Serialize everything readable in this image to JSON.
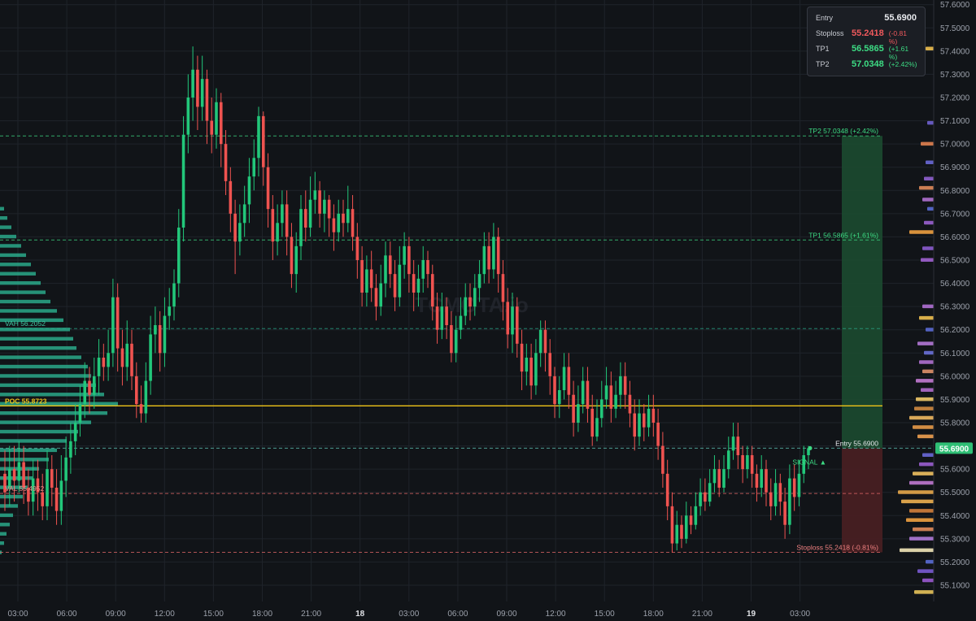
{
  "info_panel": {
    "entry": {
      "label": "Entry",
      "value": "55.6900"
    },
    "stoploss": {
      "label": "Stoploss",
      "value": "55.2418",
      "pct": "(-0.81 %)"
    },
    "tp1": {
      "label": "TP1",
      "value": "56.5865",
      "pct": "(+1.61 %)"
    },
    "tp2": {
      "label": "TP2",
      "value": "57.0348",
      "pct": "(+2.42%)"
    }
  },
  "colors": {
    "background": "#111418",
    "up": "#22c77a",
    "down": "#ef5350",
    "poc": "#f0c419",
    "profile": "#2aa889",
    "tp_zone": "#1c4a30",
    "sl_zone": "#4a1f22"
  },
  "watermark": "TCMOTA.io",
  "chart_data": {
    "type": "candlestick",
    "yaxis": {
      "range": [
        55.03,
        57.62
      ],
      "ticks": [
        "55.1000",
        "55.2000",
        "55.3000",
        "55.4000",
        "55.5000",
        "55.6000",
        "55.7000",
        "55.8000",
        "55.9000",
        "56.0000",
        "56.1000",
        "56.2000",
        "56.3000",
        "56.4000",
        "56.5000",
        "56.6000",
        "56.7000",
        "56.8000",
        "56.9000",
        "57.0000",
        "57.1000",
        "57.2000",
        "57.3000",
        "57.4000",
        "57.5000",
        "57.6000"
      ],
      "current_price_label": "55.6900"
    },
    "xaxis": {
      "ticks": [
        "03:00",
        "06:00",
        "09:00",
        "12:00",
        "15:00",
        "18:00",
        "21:00",
        "18",
        "03:00",
        "06:00",
        "09:00",
        "12:00",
        "15:00",
        "18:00",
        "21:00",
        "19",
        "03:00"
      ]
    },
    "levels": [
      {
        "name": "TP2",
        "label": "TP2 57.0348 (+2.42%)",
        "price": 57.0348,
        "color": "#3ddc84",
        "style": "dashed"
      },
      {
        "name": "TP1",
        "label": "TP1 56.5865 (+1.61%)",
        "price": 56.5865,
        "color": "#3ddc84",
        "style": "dashed"
      },
      {
        "name": "VAH",
        "label": "VAH 56.2052",
        "price": 56.2052,
        "color": "#2aa889",
        "style": "dashed"
      },
      {
        "name": "POC",
        "label": "POC 55.8723",
        "price": 55.8723,
        "color": "#f0c419",
        "style": "solid"
      },
      {
        "name": "Entry",
        "label": "Entry 55.6900",
        "price": 55.69,
        "color": "#5fc8b8",
        "style": "dashed"
      },
      {
        "name": "VAL",
        "label": "VAL 55.4952",
        "price": 55.4952,
        "color": "#e86a6a",
        "style": "dashed"
      },
      {
        "name": "Stoploss",
        "label": "Stoploss 55.2418 (-0.81%)",
        "price": 55.2418,
        "color": "#e86a6a",
        "style": "dashed"
      }
    ],
    "signal_label": "SIGNAL ▲",
    "candles": [
      [
        55.58,
        55.5,
        55.68,
        55.42
      ],
      [
        55.52,
        55.6,
        55.7,
        55.44
      ],
      [
        55.6,
        55.55,
        55.7,
        55.46
      ],
      [
        55.55,
        55.63,
        55.72,
        55.5
      ],
      [
        55.63,
        55.52,
        55.7,
        55.45
      ],
      [
        55.52,
        55.46,
        55.6,
        55.4
      ],
      [
        55.46,
        55.56,
        55.64,
        55.4
      ],
      [
        55.56,
        55.5,
        55.64,
        55.42
      ],
      [
        55.5,
        55.44,
        55.58,
        55.38
      ],
      [
        55.44,
        55.6,
        55.68,
        55.38
      ],
      [
        55.6,
        55.52,
        55.66,
        55.44
      ],
      [
        55.52,
        55.42,
        55.6,
        55.36
      ],
      [
        55.42,
        55.55,
        55.66,
        55.36
      ],
      [
        55.55,
        55.65,
        55.74,
        55.48
      ],
      [
        55.65,
        55.72,
        55.8,
        55.58
      ],
      [
        55.72,
        55.8,
        55.88,
        55.66
      ],
      [
        55.8,
        55.88,
        55.96,
        55.74
      ],
      [
        55.88,
        55.98,
        56.06,
        55.82
      ],
      [
        55.98,
        55.92,
        56.04,
        55.84
      ],
      [
        55.92,
        56.0,
        56.08,
        55.86
      ],
      [
        56.0,
        56.08,
        56.16,
        55.92
      ],
      [
        56.08,
        56.04,
        56.14,
        55.98
      ],
      [
        56.04,
        56.1,
        56.2,
        55.98
      ],
      [
        56.1,
        56.34,
        56.42,
        56.04
      ],
      [
        56.34,
        56.12,
        56.4,
        56.02
      ],
      [
        56.12,
        56.04,
        56.2,
        55.96
      ],
      [
        56.04,
        56.14,
        56.24,
        55.98
      ],
      [
        56.14,
        56.0,
        56.2,
        55.94
      ],
      [
        56.0,
        55.88,
        56.06,
        55.82
      ],
      [
        55.88,
        55.84,
        55.96,
        55.8
      ],
      [
        55.84,
        55.98,
        56.06,
        55.8
      ],
      [
        55.98,
        56.18,
        56.26,
        55.92
      ],
      [
        56.18,
        56.22,
        56.3,
        56.1
      ],
      [
        56.22,
        56.1,
        56.28,
        56.02
      ],
      [
        56.1,
        56.26,
        56.34,
        56.04
      ],
      [
        56.26,
        56.3,
        56.38,
        56.2
      ],
      [
        56.3,
        56.4,
        56.46,
        56.24
      ],
      [
        56.4,
        56.64,
        56.72,
        56.34
      ],
      [
        56.64,
        57.04,
        57.12,
        56.58
      ],
      [
        57.04,
        57.2,
        57.3,
        56.96
      ],
      [
        57.2,
        57.32,
        57.42,
        57.1
      ],
      [
        57.32,
        57.16,
        57.38,
        57.06
      ],
      [
        57.16,
        57.28,
        57.38,
        57.1
      ],
      [
        57.28,
        57.1,
        57.32,
        57.0
      ],
      [
        57.1,
        57.04,
        57.2,
        56.96
      ],
      [
        57.04,
        57.18,
        57.24,
        56.98
      ],
      [
        57.18,
        57.0,
        57.22,
        56.9
      ],
      [
        57.0,
        56.84,
        57.06,
        56.78
      ],
      [
        56.84,
        56.7,
        56.9,
        56.62
      ],
      [
        56.7,
        56.58,
        56.76,
        56.44
      ],
      [
        56.58,
        56.66,
        56.74,
        56.52
      ],
      [
        56.66,
        56.74,
        56.82,
        56.6
      ],
      [
        56.74,
        56.86,
        56.94,
        56.66
      ],
      [
        56.86,
        56.94,
        57.02,
        56.8
      ],
      [
        56.94,
        57.12,
        57.16,
        56.86
      ],
      [
        57.12,
        56.9,
        57.14,
        56.82
      ],
      [
        56.9,
        56.72,
        56.96,
        56.64
      ],
      [
        56.72,
        56.58,
        56.78,
        56.5
      ],
      [
        56.58,
        56.66,
        56.74,
        56.52
      ],
      [
        56.66,
        56.74,
        56.8,
        56.6
      ],
      [
        56.74,
        56.6,
        56.8,
        56.52
      ],
      [
        56.6,
        56.44,
        56.66,
        56.38
      ],
      [
        56.44,
        56.56,
        56.62,
        56.36
      ],
      [
        56.56,
        56.72,
        56.78,
        56.5
      ],
      [
        56.72,
        56.64,
        56.8,
        56.58
      ],
      [
        56.64,
        56.76,
        56.86,
        56.6
      ],
      [
        56.76,
        56.8,
        56.88,
        56.7
      ],
      [
        56.8,
        56.7,
        56.84,
        56.64
      ],
      [
        56.7,
        56.76,
        56.8,
        56.62
      ],
      [
        56.76,
        56.68,
        56.78,
        56.6
      ],
      [
        56.68,
        56.62,
        56.74,
        56.54
      ],
      [
        56.62,
        56.7,
        56.76,
        56.58
      ],
      [
        56.7,
        56.66,
        56.76,
        56.6
      ],
      [
        56.66,
        56.72,
        56.82,
        56.62
      ],
      [
        56.72,
        56.6,
        56.78,
        56.54
      ],
      [
        56.6,
        56.5,
        56.66,
        56.42
      ],
      [
        56.5,
        56.36,
        56.56,
        56.3
      ],
      [
        56.36,
        56.46,
        56.52,
        56.3
      ],
      [
        56.46,
        56.38,
        56.54,
        56.32
      ],
      [
        56.38,
        56.3,
        56.44,
        56.24
      ],
      [
        56.3,
        56.4,
        56.48,
        56.26
      ],
      [
        56.4,
        56.52,
        56.58,
        56.34
      ],
      [
        56.52,
        56.44,
        56.58,
        56.38
      ],
      [
        56.44,
        56.34,
        56.5,
        56.28
      ],
      [
        56.34,
        56.48,
        56.56,
        56.3
      ],
      [
        56.48,
        56.56,
        56.62,
        56.42
      ],
      [
        56.56,
        56.44,
        56.6,
        56.36
      ],
      [
        56.44,
        56.36,
        56.5,
        56.28
      ],
      [
        56.36,
        56.42,
        56.48,
        56.3
      ],
      [
        56.42,
        56.5,
        56.56,
        56.36
      ],
      [
        56.5,
        56.44,
        56.54,
        56.38
      ],
      [
        56.44,
        56.3,
        56.48,
        56.24
      ],
      [
        56.3,
        56.2,
        56.36,
        56.14
      ],
      [
        56.2,
        56.3,
        56.36,
        56.16
      ],
      [
        56.3,
        56.22,
        56.34,
        56.16
      ],
      [
        56.22,
        56.1,
        56.28,
        56.06
      ],
      [
        56.1,
        56.2,
        56.26,
        56.06
      ],
      [
        56.2,
        56.26,
        56.34,
        56.16
      ],
      [
        56.26,
        56.34,
        56.4,
        56.22
      ],
      [
        56.34,
        56.3,
        56.4,
        56.24
      ],
      [
        56.3,
        56.38,
        56.44,
        56.26
      ],
      [
        56.38,
        56.44,
        56.5,
        56.32
      ],
      [
        56.44,
        56.56,
        56.62,
        56.4
      ],
      [
        56.56,
        56.46,
        56.62,
        56.4
      ],
      [
        56.46,
        56.6,
        56.66,
        56.42
      ],
      [
        56.6,
        56.44,
        56.64,
        56.36
      ],
      [
        56.44,
        56.32,
        56.5,
        56.24
      ],
      [
        56.32,
        56.18,
        56.38,
        56.12
      ],
      [
        56.18,
        56.3,
        56.36,
        56.1
      ],
      [
        56.3,
        56.14,
        56.34,
        56.08
      ],
      [
        56.14,
        56.02,
        56.2,
        55.94
      ],
      [
        56.02,
        56.08,
        56.14,
        55.96
      ],
      [
        56.08,
        55.96,
        56.14,
        55.9
      ],
      [
        55.96,
        56.1,
        56.16,
        55.92
      ],
      [
        56.1,
        56.2,
        56.24,
        56.04
      ],
      [
        56.2,
        56.1,
        56.24,
        56.02
      ],
      [
        56.1,
        56.0,
        56.16,
        55.92
      ],
      [
        56.0,
        55.88,
        56.04,
        55.82
      ],
      [
        55.88,
        55.94,
        56.0,
        55.82
      ],
      [
        55.94,
        56.04,
        56.1,
        55.9
      ],
      [
        56.04,
        55.92,
        56.1,
        55.86
      ],
      [
        55.92,
        55.8,
        55.98,
        55.74
      ],
      [
        55.8,
        55.88,
        55.96,
        55.76
      ],
      [
        55.88,
        55.98,
        56.04,
        55.84
      ],
      [
        55.98,
        55.86,
        56.04,
        55.8
      ],
      [
        55.86,
        55.74,
        55.92,
        55.7
      ],
      [
        55.74,
        55.82,
        55.9,
        55.72
      ],
      [
        55.82,
        55.9,
        55.98,
        55.78
      ],
      [
        55.9,
        55.96,
        56.04,
        55.86
      ],
      [
        55.96,
        55.86,
        56.02,
        55.8
      ],
      [
        55.86,
        55.92,
        55.98,
        55.82
      ],
      [
        55.92,
        56.0,
        56.06,
        55.86
      ],
      [
        56.0,
        55.92,
        56.06,
        55.86
      ],
      [
        55.92,
        55.84,
        55.98,
        55.78
      ],
      [
        55.84,
        55.74,
        55.9,
        55.68
      ],
      [
        55.74,
        55.84,
        55.9,
        55.7
      ],
      [
        55.84,
        55.78,
        55.88,
        55.72
      ],
      [
        55.78,
        55.86,
        55.92,
        55.74
      ],
      [
        55.86,
        55.8,
        55.92,
        55.74
      ],
      [
        55.8,
        55.7,
        55.86,
        55.64
      ],
      [
        55.7,
        55.58,
        55.76,
        55.52
      ],
      [
        55.58,
        55.44,
        55.64,
        55.38
      ],
      [
        55.44,
        55.28,
        55.5,
        55.24
      ],
      [
        55.28,
        55.36,
        55.42,
        55.25
      ],
      [
        55.36,
        55.3,
        55.4,
        55.26
      ],
      [
        55.3,
        55.4,
        55.46,
        55.28
      ],
      [
        55.4,
        55.36,
        55.44,
        55.32
      ],
      [
        55.36,
        55.44,
        55.5,
        55.34
      ],
      [
        55.44,
        55.5,
        55.56,
        55.4
      ],
      [
        55.5,
        55.46,
        55.56,
        55.42
      ],
      [
        55.46,
        55.54,
        55.6,
        55.44
      ],
      [
        55.54,
        55.6,
        55.66,
        55.5
      ],
      [
        55.6,
        55.52,
        55.64,
        55.48
      ],
      [
        55.52,
        55.6,
        55.66,
        55.5
      ],
      [
        55.6,
        55.68,
        55.74,
        55.56
      ],
      [
        55.68,
        55.74,
        55.8,
        55.64
      ],
      [
        55.74,
        55.66,
        55.8,
        55.6
      ],
      [
        55.66,
        55.6,
        55.7,
        55.54
      ],
      [
        55.6,
        55.66,
        55.7,
        55.56
      ],
      [
        55.66,
        55.58,
        55.7,
        55.52
      ],
      [
        55.58,
        55.52,
        55.62,
        55.46
      ],
      [
        55.52,
        55.6,
        55.66,
        55.48
      ],
      [
        55.6,
        55.5,
        55.64,
        55.44
      ],
      [
        55.5,
        55.44,
        55.56,
        55.38
      ],
      [
        55.44,
        55.54,
        55.6,
        55.4
      ],
      [
        55.54,
        55.46,
        55.58,
        55.4
      ],
      [
        55.46,
        55.36,
        55.52,
        55.3
      ],
      [
        55.36,
        55.56,
        55.62,
        55.32
      ],
      [
        55.56,
        55.48,
        55.62,
        55.42
      ],
      [
        55.48,
        55.58,
        55.64,
        55.44
      ],
      [
        55.58,
        55.66,
        55.7,
        55.54
      ],
      [
        55.66,
        55.69,
        55.7,
        55.6
      ]
    ],
    "volume_profile_left": [
      [
        55.24,
        2
      ],
      [
        55.28,
        5
      ],
      [
        55.32,
        8
      ],
      [
        55.36,
        12
      ],
      [
        55.4,
        16
      ],
      [
        55.44,
        22
      ],
      [
        55.48,
        28
      ],
      [
        55.52,
        34
      ],
      [
        55.56,
        40
      ],
      [
        55.6,
        48
      ],
      [
        55.64,
        60
      ],
      [
        55.68,
        70
      ],
      [
        55.72,
        82
      ],
      [
        55.76,
        96
      ],
      [
        55.8,
        112
      ],
      [
        55.84,
        132
      ],
      [
        55.88,
        145
      ],
      [
        55.92,
        128
      ],
      [
        55.96,
        118
      ],
      [
        56.0,
        112
      ],
      [
        56.04,
        108
      ],
      [
        56.08,
        100
      ],
      [
        56.12,
        94
      ],
      [
        56.16,
        90
      ],
      [
        56.2,
        86
      ],
      [
        56.24,
        78
      ],
      [
        56.28,
        70
      ],
      [
        56.32,
        62
      ],
      [
        56.36,
        56
      ],
      [
        56.4,
        50
      ],
      [
        56.44,
        44
      ],
      [
        56.48,
        38
      ],
      [
        56.52,
        32
      ],
      [
        56.56,
        26
      ],
      [
        56.6,
        20
      ],
      [
        56.64,
        14
      ],
      [
        56.68,
        9
      ],
      [
        56.72,
        5
      ]
    ],
    "volume_profile_right": [
      [
        55.07,
        24,
        "#e8c35a"
      ],
      [
        55.12,
        14,
        "#9b59d0"
      ],
      [
        55.16,
        20,
        "#7b5bd4"
      ],
      [
        55.2,
        10,
        "#5a6bd6"
      ],
      [
        55.25,
        42,
        "#f2e6b8"
      ],
      [
        55.3,
        30,
        "#b07ad8"
      ],
      [
        55.34,
        26,
        "#e08a5a"
      ],
      [
        55.38,
        34,
        "#f0a040"
      ],
      [
        55.42,
        30,
        "#d4803c"
      ],
      [
        55.46,
        40,
        "#f0b050"
      ],
      [
        55.5,
        44,
        "#e8a84a"
      ],
      [
        55.54,
        30,
        "#c078d0"
      ],
      [
        55.58,
        26,
        "#f0c060"
      ],
      [
        55.62,
        18,
        "#9a5ed0"
      ],
      [
        55.66,
        14,
        "#6a68d8"
      ],
      [
        55.74,
        20,
        "#f0a050"
      ],
      [
        55.78,
        26,
        "#e89a48"
      ],
      [
        55.82,
        30,
        "#f0b860"
      ],
      [
        55.86,
        24,
        "#d08840"
      ],
      [
        55.9,
        22,
        "#f0c868"
      ],
      [
        55.94,
        16,
        "#b06acc"
      ],
      [
        55.98,
        22,
        "#c47ad4"
      ],
      [
        56.02,
        14,
        "#e0906a"
      ],
      [
        56.06,
        18,
        "#b070d0"
      ],
      [
        56.1,
        12,
        "#6a70d8"
      ],
      [
        56.14,
        20,
        "#b478d6"
      ],
      [
        56.2,
        10,
        "#5a6ad4"
      ],
      [
        56.25,
        18,
        "#f0c050"
      ],
      [
        56.3,
        14,
        "#b070d4"
      ],
      [
        56.5,
        16,
        "#a060d0"
      ],
      [
        56.55,
        14,
        "#8c5cd0"
      ],
      [
        56.62,
        30,
        "#f0a040"
      ],
      [
        56.66,
        12,
        "#9a60d0"
      ],
      [
        56.72,
        8,
        "#5a6ad4"
      ],
      [
        56.76,
        14,
        "#b070d0"
      ],
      [
        56.81,
        18,
        "#e08a5a"
      ],
      [
        56.85,
        12,
        "#9060d0"
      ],
      [
        56.92,
        10,
        "#6a68d8"
      ],
      [
        57.0,
        16,
        "#e08050"
      ],
      [
        57.09,
        8,
        "#7060d0"
      ],
      [
        57.41,
        10,
        "#f0c050"
      ]
    ]
  }
}
